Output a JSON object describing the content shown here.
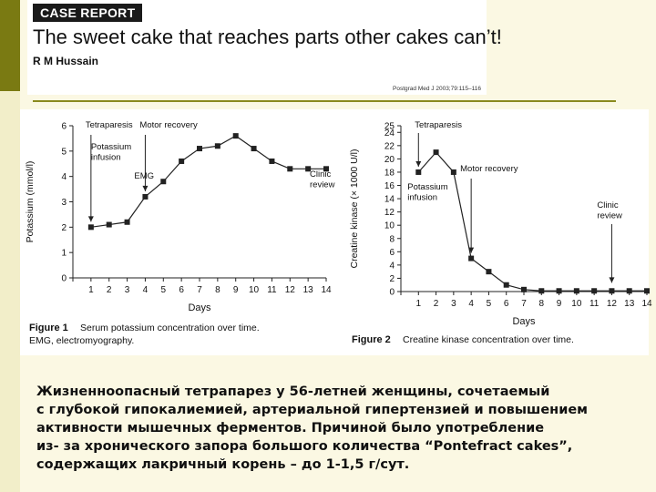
{
  "header": {
    "case_report_label": "CASE REPORT",
    "article_title": "The sweet cake that reaches parts other cakes can’t!",
    "author": "R M Hussain",
    "citation": "Postgrad Med J 2003;79:115–116"
  },
  "chart_data": [
    {
      "type": "line",
      "x": [
        1,
        2,
        3,
        4,
        5,
        6,
        7,
        8,
        9,
        10,
        11,
        12,
        13,
        14
      ],
      "y": [
        2.0,
        2.1,
        2.2,
        3.2,
        3.8,
        4.6,
        5.1,
        5.2,
        5.6,
        5.1,
        4.6,
        4.3,
        4.3,
        4.3
      ],
      "xlabel": "Days",
      "ylabel": "Potassium (mmol/l)",
      "xlim": [
        0,
        14
      ],
      "ylim": [
        0,
        6
      ],
      "yticks": [
        0,
        1,
        2,
        3,
        4,
        5,
        6
      ],
      "xticks": [
        1,
        2,
        3,
        4,
        5,
        6,
        7,
        8,
        9,
        10,
        11,
        12,
        13,
        14
      ],
      "annotations": [
        {
          "text": "Tetraparesis",
          "x": 1
        },
        {
          "text": "Potassium\ninfusion",
          "x": 1
        },
        {
          "text": "Motor recovery",
          "x": 4
        },
        {
          "text": "EMG",
          "x": 4
        },
        {
          "text": "Clinic\nreview",
          "x": 14
        }
      ],
      "caption_label": "Figure 1",
      "caption": "Serum potassium concentration over time.",
      "caption_line2": "EMG, electromyography."
    },
    {
      "type": "line",
      "x": [
        1,
        2,
        3,
        4,
        5,
        6,
        7,
        8,
        9,
        10,
        11,
        12,
        13,
        14
      ],
      "y": [
        18,
        21,
        18,
        5,
        3,
        1,
        0.3,
        0.1,
        0.1,
        0.1,
        0.1,
        0.1,
        0.1,
        0.1
      ],
      "xlabel": "Days",
      "ylabel": "Creatine kinase (× 1000 U/l)",
      "xlim": [
        0,
        14
      ],
      "ylim": [
        0,
        25
      ],
      "yticks": [
        0,
        2,
        4,
        6,
        8,
        10,
        12,
        14,
        16,
        18,
        20,
        22,
        24,
        25
      ],
      "xticks": [
        1,
        2,
        3,
        4,
        5,
        6,
        7,
        8,
        9,
        10,
        11,
        12,
        13,
        14
      ],
      "annotations": [
        {
          "text": "Tetraparesis",
          "x": 1
        },
        {
          "text": "Potassium\ninfusion",
          "x": 1
        },
        {
          "text": "Motor recovery",
          "x": 4
        },
        {
          "text": "Clinic\nreview",
          "x": 12
        }
      ],
      "caption_label": "Figure 2",
      "caption": "Creatine kinase concentration over time."
    }
  ],
  "body_text": "Жизненноопасный тетрапарез у 56-летней женщины, сочетаемый\nс глубокой гипокалиемией, артериальной гипертензией и повышением\nактивности мышечных ферментов. Причиной было употребление\nиз- за хронического запора большого количества “Pontefract cakes”,\nсодержащих лакричный корень – до 1-1,5 г/сут.",
  "colors": {
    "background": "#fbf8e3",
    "accent_olive": "#7a7a12",
    "divider": "#8a8a1e"
  }
}
